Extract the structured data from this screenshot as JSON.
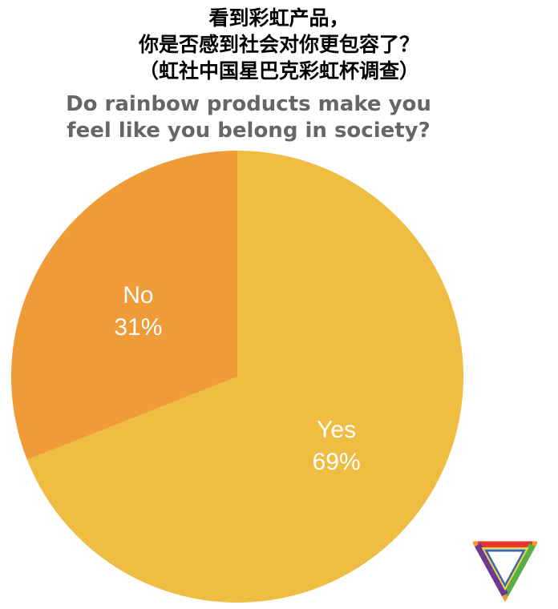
{
  "title": {
    "cn_lines": [
      "看到彩虹产品，",
      "你是否感到社会对你更包容了？",
      "（虹社中国星巴克彩虹杯调查）"
    ],
    "en_lines": [
      "Do rainbow products make you",
      "feel like you belong in society?"
    ]
  },
  "colors": {
    "yes": "#EEBD41",
    "no": "#EF9B38",
    "title_en": "#666666",
    "logo_red": "#E5372C",
    "logo_orange": "#F39A2B",
    "logo_yellow": "#F4D33A",
    "logo_green": "#58AE47",
    "logo_blue": "#3D66B0",
    "logo_purple": "#6B3A96"
  },
  "chart_data": {
    "type": "pie",
    "start": "12 o'clock, clockwise",
    "slices": [
      {
        "name": "Yes",
        "value": 69,
        "label": "69%"
      },
      {
        "name": "No",
        "value": 31,
        "label": "31%"
      }
    ]
  },
  "logo": {
    "icon": "rainbow-triangle-icon"
  }
}
